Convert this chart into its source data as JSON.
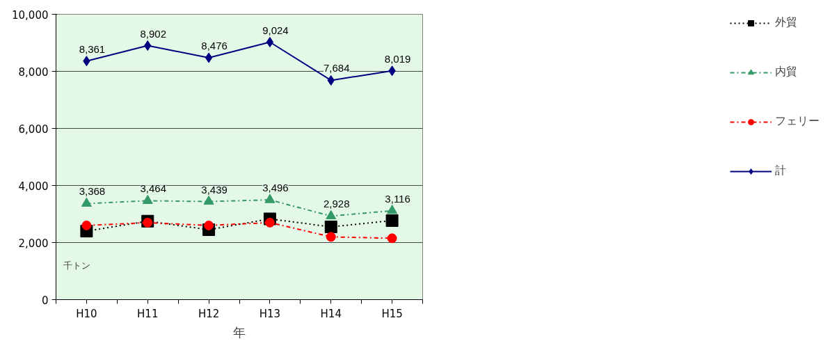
{
  "chart_data": {
    "type": "line",
    "xlabel": "年",
    "ylabel": "千トン",
    "categories": [
      "H10",
      "H11",
      "H12",
      "H13",
      "H14",
      "H15"
    ],
    "series": [
      {
        "name": "外貿",
        "color": "#000000",
        "marker": "square",
        "line_style": "dotted",
        "values": [
          2400,
          2750,
          2450,
          2830,
          2550,
          2770
        ]
      },
      {
        "name": "内貿",
        "color": "#339966",
        "marker": "triangle",
        "line_style": "dashed",
        "values": [
          3368,
          3464,
          3439,
          3496,
          2928,
          3116
        ],
        "value_labels": [
          "3,368",
          "3,464",
          "3,439",
          "3,496",
          "2,928",
          "3,116"
        ]
      },
      {
        "name": "フェリー",
        "color": "#ff0000",
        "marker": "circle",
        "line_style": "dashed",
        "values": [
          2600,
          2700,
          2600,
          2700,
          2200,
          2150
        ]
      },
      {
        "name": "計",
        "color": "#000080",
        "marker": "diamond",
        "line_style": "solid",
        "values": [
          8361,
          8902,
          8476,
          9024,
          7684,
          8019
        ],
        "value_labels": [
          "8,361",
          "8,902",
          "8,476",
          "9,024",
          "7,684",
          "8,019"
        ]
      }
    ],
    "ylim": [
      0,
      10000
    ],
    "yticks": [
      0,
      {
        "value": 2000,
        "label": "2,000"
      },
      {
        "value": 4000,
        "label": "4,000"
      },
      {
        "value": 6000,
        "label": "6,000"
      },
      {
        "value": 8000,
        "label": "8,000"
      },
      {
        "value": 10000,
        "label": "10,000"
      }
    ],
    "grid": "y",
    "legend": "right"
  }
}
